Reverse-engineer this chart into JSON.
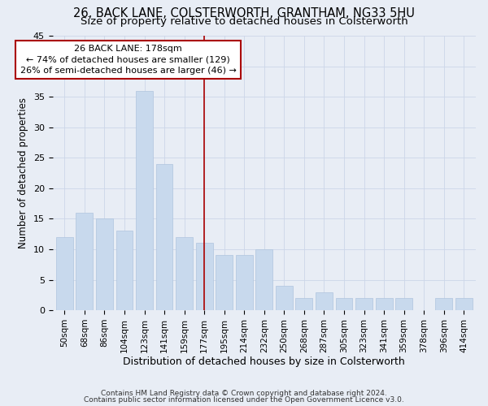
{
  "title1": "26, BACK LANE, COLSTERWORTH, GRANTHAM, NG33 5HU",
  "title2": "Size of property relative to detached houses in Colsterworth",
  "xlabel": "Distribution of detached houses by size in Colsterworth",
  "ylabel": "Number of detached properties",
  "footnote1": "Contains HM Land Registry data © Crown copyright and database right 2024.",
  "footnote2": "Contains public sector information licensed under the Open Government Licence v3.0.",
  "categories": [
    "50sqm",
    "68sqm",
    "86sqm",
    "104sqm",
    "123sqm",
    "141sqm",
    "159sqm",
    "177sqm",
    "195sqm",
    "214sqm",
    "232sqm",
    "250sqm",
    "268sqm",
    "287sqm",
    "305sqm",
    "323sqm",
    "341sqm",
    "359sqm",
    "378sqm",
    "396sqm",
    "414sqm"
  ],
  "values": [
    12,
    16,
    15,
    13,
    36,
    24,
    12,
    11,
    9,
    9,
    10,
    4,
    2,
    3,
    2,
    2,
    2,
    2,
    0,
    2,
    2
  ],
  "bar_color": "#c8d9ed",
  "bar_edge_color": "#b0c4de",
  "property_line_index": 7,
  "annotation_text_line1": "26 BACK LANE: 178sqm",
  "annotation_text_line2": "← 74% of detached houses are smaller (129)",
  "annotation_text_line3": "26% of semi-detached houses are larger (46) →",
  "annotation_box_color": "#ffffff",
  "annotation_box_edge": "#aa0000",
  "property_line_color": "#aa0000",
  "ylim": [
    0,
    45
  ],
  "yticks": [
    0,
    5,
    10,
    15,
    20,
    25,
    30,
    35,
    40,
    45
  ],
  "grid_color": "#ccd6e8",
  "bg_color": "#e8edf5",
  "title1_fontsize": 10.5,
  "title2_fontsize": 9.5,
  "xlabel_fontsize": 9,
  "ylabel_fontsize": 8.5,
  "tick_fontsize": 8,
  "xtick_fontsize": 7.5,
  "annot_fontsize": 8,
  "footnote_fontsize": 6.5
}
